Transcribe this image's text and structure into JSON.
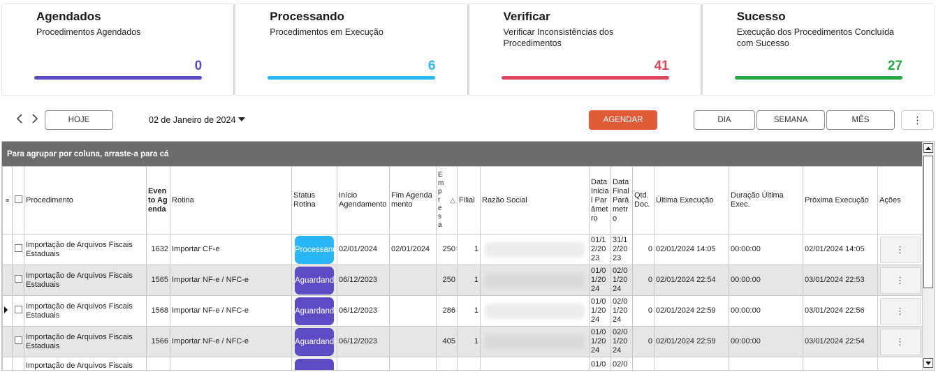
{
  "cards": [
    {
      "title": "Agendados",
      "subtitle": "Procedimentos Agendados",
      "count": "0",
      "color": "#5b4bc4"
    },
    {
      "title": "Processando",
      "subtitle": "Procedimentos em Execução",
      "count": "6",
      "color": "#29b6f6"
    },
    {
      "title": "Verificar",
      "subtitle": "Verificar Inconsistências dos Procedimentos",
      "count": "41",
      "color": "#e0475a"
    },
    {
      "title": "Sucesso",
      "subtitle": "Execução dos Procedimentos Concluída com Sucesso",
      "count": "27",
      "color": "#28a745"
    }
  ],
  "toolbar": {
    "prev_icon": "chevron-left-icon",
    "next_icon": "chevron-right-icon",
    "hoje": "HOJE",
    "date": "02 de Janeiro de 2024",
    "agendar": "AGENDAR",
    "agendar_color": "#e05b36",
    "dia": "DIA",
    "semana": "SEMANA",
    "mes": "MÊS",
    "more": "⋮"
  },
  "grid": {
    "group_hint": "Para agrupar por coluna, arraste-a para cá",
    "columns": {
      "procedimento": "Procedimento",
      "evento": "Evento Agenda",
      "rotina": "Rotina",
      "status": "Status Rotina",
      "inicio": "Início Agendamento",
      "fim": "Fim Agendamento",
      "empresa": "Empresa",
      "filial": "Filial",
      "razao": "Razão Social",
      "data_inicial": "Data Inicial Parâmetro",
      "data_final": "Data Final Parâmetro",
      "qtd": "Qtd. Doc.",
      "ultima": "Última Execução",
      "duracao": "Duração Última Exec.",
      "proxima": "Próxima Execução",
      "acoes": "Ações"
    },
    "sort_indicator": "△",
    "rows": [
      {
        "procedimento": "Importação de Arquivos Fiscais Estaduais",
        "evento": "1632",
        "rotina": "Importar CF-e",
        "status": "Processando",
        "status_color": "#29b6f6",
        "inicio": "02/01/2024",
        "fim": "02/01/2024",
        "empresa": "250",
        "filial": "1",
        "data_inicial": "01/12/2023",
        "data_final": "31/12/2023",
        "qtd": "0",
        "ultima": "02/01/2024 14:05",
        "duracao": "00:00:00",
        "proxima": "02/01/2024 14:05",
        "acoes": "⋮"
      },
      {
        "procedimento": "Importação de Arquivos Fiscais Estaduais",
        "evento": "1565",
        "rotina": "Importar NF-e / NFC-e",
        "status": "Aguardando...",
        "status_color": "#5b4bc4",
        "inicio": "06/12/2023",
        "fim": "",
        "empresa": "250",
        "filial": "1",
        "data_inicial": "01/01/2024",
        "data_final": "02/01/2024",
        "qtd": "0",
        "ultima": "02/01/2024 22:54",
        "duracao": "00:00:00",
        "proxima": "03/01/2024 22:53",
        "acoes": "⋮"
      },
      {
        "procedimento": "Importação de Arquivos Fiscais Estaduais",
        "evento": "1568",
        "rotina": "Importar NF-e / NFC-e",
        "status": "Aguardando...",
        "status_color": "#5b4bc4",
        "inicio": "06/12/2023",
        "fim": "",
        "empresa": "286",
        "filial": "1",
        "data_inicial": "01/01/2024",
        "data_final": "02/01/2024",
        "qtd": "0",
        "ultima": "02/01/2024 22:59",
        "duracao": "00:00:00",
        "proxima": "03/01/2024 22:56",
        "acoes": "⋮"
      },
      {
        "procedimento": "Importação de Arquivos Fiscais Estaduais",
        "evento": "1566",
        "rotina": "Importar NF-e / NFC-e",
        "status": "Aguardando...",
        "status_color": "#5b4bc4",
        "inicio": "06/12/2023",
        "fim": "",
        "empresa": "405",
        "filial": "1",
        "data_inicial": "01/01/2024",
        "data_final": "02/01/2024",
        "qtd": "0",
        "ultima": "02/01/2024 22:59",
        "duracao": "00:00:00",
        "proxima": "03/01/2024 22:54",
        "acoes": "⋮"
      },
      {
        "procedimento": "Importação de Arquivos Fiscais",
        "evento": "",
        "rotina": "",
        "status": "",
        "status_color": "#5b4bc4",
        "inicio": "",
        "fim": "",
        "empresa": "",
        "filial": "",
        "data_inicial": "01/0",
        "data_final": "02/0",
        "qtd": "",
        "ultima": "",
        "duracao": "",
        "proxima": "",
        "acoes": ""
      }
    ]
  }
}
